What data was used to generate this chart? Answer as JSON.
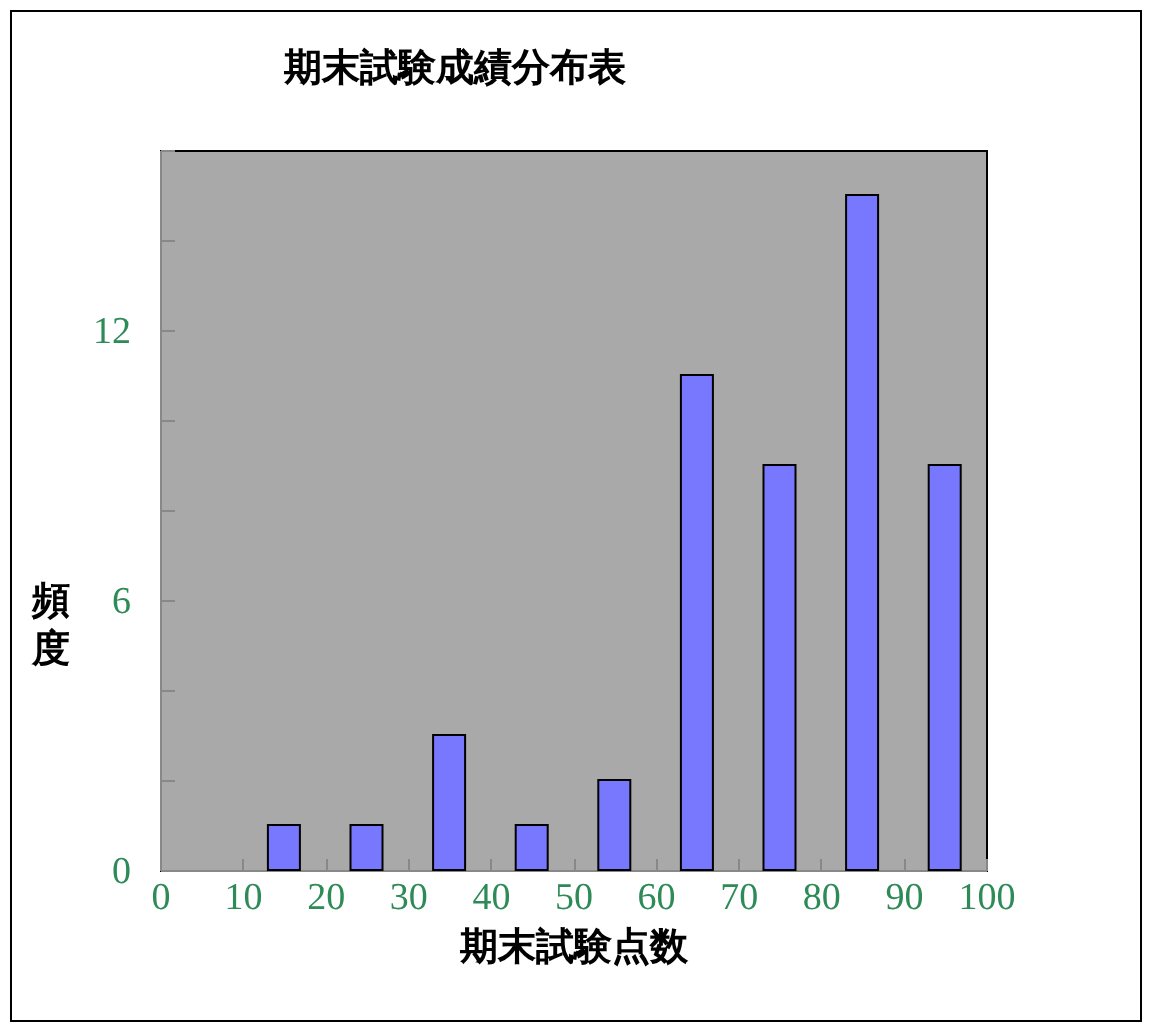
{
  "chart_data": {
    "type": "histogram",
    "title": "期末試験成績分布表",
    "xlabel": "期末試験点数",
    "ylabel": "頻度",
    "bins": [
      0,
      10,
      20,
      30,
      40,
      50,
      60,
      70,
      80,
      90,
      100
    ],
    "values": [
      0,
      1,
      1,
      3,
      1,
      2,
      11,
      9,
      15,
      9
    ],
    "color": "#7878ff",
    "xlim": [
      0,
      100
    ],
    "xticks": [
      0,
      10,
      20,
      30,
      40,
      50,
      60,
      70,
      80,
      90,
      100
    ],
    "ylim": [
      0,
      16
    ],
    "yticks": [
      0,
      {
        "value": 2,
        "label": null
      },
      {
        "value": 4,
        "label": null
      },
      6,
      {
        "value": 8,
        "label": null
      },
      {
        "value": 10,
        "label": null
      },
      12,
      {
        "value": 14,
        "label": null
      },
      {
        "value": 16,
        "label": null
      }
    ]
  }
}
